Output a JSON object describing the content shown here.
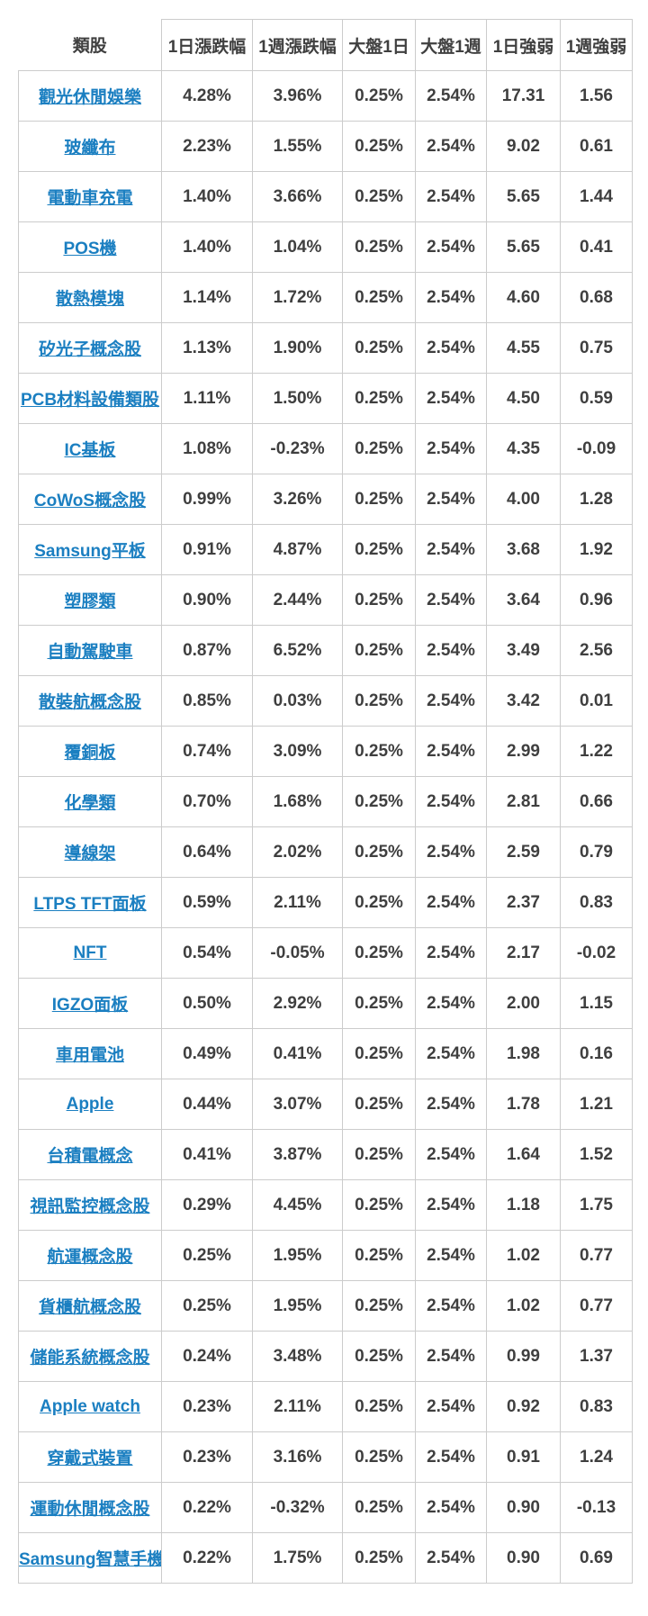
{
  "page": {
    "background": "#ffffff"
  },
  "colors": {
    "link_blue": "#1b7fc1",
    "value_text": "#3f3f3f",
    "header_text": "#3f3f3f",
    "border_gray": "#cccccc"
  },
  "chart_data": {
    "type": "table",
    "columns": [
      "類股",
      "1日漲跌幅",
      "1週漲跌幅",
      "大盤1日",
      "大盤1週",
      "1日強弱",
      "1週強弱"
    ],
    "rows": [
      {
        "sector": "觀光休閒娛樂",
        "day_change": "4.28%",
        "week_change": "3.96%",
        "market_day": "0.25%",
        "market_week": "2.54%",
        "day_strength": "17.31",
        "week_strength": "1.56"
      },
      {
        "sector": "玻纖布",
        "day_change": "2.23%",
        "week_change": "1.55%",
        "market_day": "0.25%",
        "market_week": "2.54%",
        "day_strength": "9.02",
        "week_strength": "0.61"
      },
      {
        "sector": "電動車充電",
        "day_change": "1.40%",
        "week_change": "3.66%",
        "market_day": "0.25%",
        "market_week": "2.54%",
        "day_strength": "5.65",
        "week_strength": "1.44"
      },
      {
        "sector": "POS機",
        "day_change": "1.40%",
        "week_change": "1.04%",
        "market_day": "0.25%",
        "market_week": "2.54%",
        "day_strength": "5.65",
        "week_strength": "0.41"
      },
      {
        "sector": "散熱模塊",
        "day_change": "1.14%",
        "week_change": "1.72%",
        "market_day": "0.25%",
        "market_week": "2.54%",
        "day_strength": "4.60",
        "week_strength": "0.68"
      },
      {
        "sector": "矽光子概念股",
        "day_change": "1.13%",
        "week_change": "1.90%",
        "market_day": "0.25%",
        "market_week": "2.54%",
        "day_strength": "4.55",
        "week_strength": "0.75"
      },
      {
        "sector": "PCB材料設備類股",
        "day_change": "1.11%",
        "week_change": "1.50%",
        "market_day": "0.25%",
        "market_week": "2.54%",
        "day_strength": "4.50",
        "week_strength": "0.59"
      },
      {
        "sector": "IC基板",
        "day_change": "1.08%",
        "week_change": "-0.23%",
        "market_day": "0.25%",
        "market_week": "2.54%",
        "day_strength": "4.35",
        "week_strength": "-0.09"
      },
      {
        "sector": "CoWoS概念股",
        "day_change": "0.99%",
        "week_change": "3.26%",
        "market_day": "0.25%",
        "market_week": "2.54%",
        "day_strength": "4.00",
        "week_strength": "1.28"
      },
      {
        "sector": "Samsung平板",
        "day_change": "0.91%",
        "week_change": "4.87%",
        "market_day": "0.25%",
        "market_week": "2.54%",
        "day_strength": "3.68",
        "week_strength": "1.92"
      },
      {
        "sector": "塑膠類",
        "day_change": "0.90%",
        "week_change": "2.44%",
        "market_day": "0.25%",
        "market_week": "2.54%",
        "day_strength": "3.64",
        "week_strength": "0.96"
      },
      {
        "sector": "自動駕駛車",
        "day_change": "0.87%",
        "week_change": "6.52%",
        "market_day": "0.25%",
        "market_week": "2.54%",
        "day_strength": "3.49",
        "week_strength": "2.56"
      },
      {
        "sector": "散裝航概念股",
        "day_change": "0.85%",
        "week_change": "0.03%",
        "market_day": "0.25%",
        "market_week": "2.54%",
        "day_strength": "3.42",
        "week_strength": "0.01"
      },
      {
        "sector": "覆銅板",
        "day_change": "0.74%",
        "week_change": "3.09%",
        "market_day": "0.25%",
        "market_week": "2.54%",
        "day_strength": "2.99",
        "week_strength": "1.22"
      },
      {
        "sector": "化學類",
        "day_change": "0.70%",
        "week_change": "1.68%",
        "market_day": "0.25%",
        "market_week": "2.54%",
        "day_strength": "2.81",
        "week_strength": "0.66"
      },
      {
        "sector": "導線架",
        "day_change": "0.64%",
        "week_change": "2.02%",
        "market_day": "0.25%",
        "market_week": "2.54%",
        "day_strength": "2.59",
        "week_strength": "0.79"
      },
      {
        "sector": "LTPS TFT面板",
        "day_change": "0.59%",
        "week_change": "2.11%",
        "market_day": "0.25%",
        "market_week": "2.54%",
        "day_strength": "2.37",
        "week_strength": "0.83"
      },
      {
        "sector": "NFT",
        "day_change": "0.54%",
        "week_change": "-0.05%",
        "market_day": "0.25%",
        "market_week": "2.54%",
        "day_strength": "2.17",
        "week_strength": "-0.02"
      },
      {
        "sector": "IGZO面板",
        "day_change": "0.50%",
        "week_change": "2.92%",
        "market_day": "0.25%",
        "market_week": "2.54%",
        "day_strength": "2.00",
        "week_strength": "1.15"
      },
      {
        "sector": "車用電池",
        "day_change": "0.49%",
        "week_change": "0.41%",
        "market_day": "0.25%",
        "market_week": "2.54%",
        "day_strength": "1.98",
        "week_strength": "0.16"
      },
      {
        "sector": "Apple",
        "day_change": "0.44%",
        "week_change": "3.07%",
        "market_day": "0.25%",
        "market_week": "2.54%",
        "day_strength": "1.78",
        "week_strength": "1.21"
      },
      {
        "sector": "台積電概念",
        "day_change": "0.41%",
        "week_change": "3.87%",
        "market_day": "0.25%",
        "market_week": "2.54%",
        "day_strength": "1.64",
        "week_strength": "1.52"
      },
      {
        "sector": "視訊監控概念股",
        "day_change": "0.29%",
        "week_change": "4.45%",
        "market_day": "0.25%",
        "market_week": "2.54%",
        "day_strength": "1.18",
        "week_strength": "1.75"
      },
      {
        "sector": "航運概念股",
        "day_change": "0.25%",
        "week_change": "1.95%",
        "market_day": "0.25%",
        "market_week": "2.54%",
        "day_strength": "1.02",
        "week_strength": "0.77"
      },
      {
        "sector": "貨櫃航概念股",
        "day_change": "0.25%",
        "week_change": "1.95%",
        "market_day": "0.25%",
        "market_week": "2.54%",
        "day_strength": "1.02",
        "week_strength": "0.77"
      },
      {
        "sector": "儲能系統概念股",
        "day_change": "0.24%",
        "week_change": "3.48%",
        "market_day": "0.25%",
        "market_week": "2.54%",
        "day_strength": "0.99",
        "week_strength": "1.37"
      },
      {
        "sector": "Apple watch",
        "day_change": "0.23%",
        "week_change": "2.11%",
        "market_day": "0.25%",
        "market_week": "2.54%",
        "day_strength": "0.92",
        "week_strength": "0.83"
      },
      {
        "sector": "穿戴式裝置",
        "day_change": "0.23%",
        "week_change": "3.16%",
        "market_day": "0.25%",
        "market_week": "2.54%",
        "day_strength": "0.91",
        "week_strength": "1.24"
      },
      {
        "sector": "運動休閒概念股",
        "day_change": "0.22%",
        "week_change": "-0.32%",
        "market_day": "0.25%",
        "market_week": "2.54%",
        "day_strength": "0.90",
        "week_strength": "-0.13"
      },
      {
        "sector": "Samsung智慧手機",
        "day_change": "0.22%",
        "week_change": "1.75%",
        "market_day": "0.25%",
        "market_week": "2.54%",
        "day_strength": "0.90",
        "week_strength": "0.69"
      }
    ]
  }
}
